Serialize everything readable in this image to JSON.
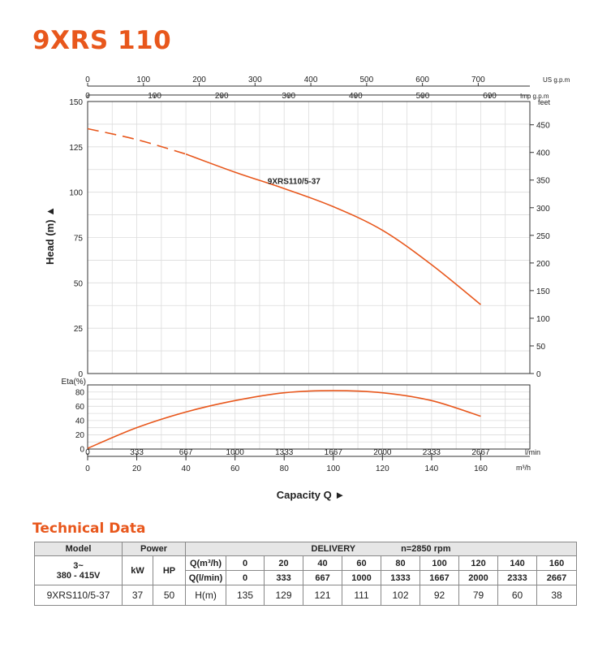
{
  "page_title": "9XRS 110",
  "section_title": "Technical Data",
  "chart_data": [
    {
      "type": "line",
      "name": "head-curve",
      "ylabel": "Head (m)",
      "ylabel_arrow": "▲",
      "ylim": [
        0,
        150
      ],
      "y_ticks": [
        0,
        25,
        50,
        75,
        100,
        125,
        150
      ],
      "xlim": [
        0,
        180
      ],
      "right_axis_unit": "feet",
      "right_axis_ticks": [
        0,
        50,
        100,
        150,
        200,
        250,
        300,
        350,
        400,
        450
      ],
      "top_axis_us": {
        "unit": "US g.p.m",
        "ticks": [
          0,
          100,
          200,
          300,
          400,
          500,
          600,
          700
        ]
      },
      "top_axis_imp": {
        "unit": "Imp g.p.m",
        "ticks": [
          0,
          100,
          200,
          300,
          400,
          500,
          600
        ]
      },
      "grid": true,
      "series": [
        {
          "name": "9XRS110/5-37",
          "color": "#e8571c",
          "x": [
            0,
            20,
            40,
            60,
            80,
            100,
            120,
            140,
            160
          ],
          "y": [
            135,
            129,
            121,
            111,
            102,
            92,
            79,
            60,
            38
          ],
          "dashed_until_x": 40
        }
      ]
    },
    {
      "type": "line",
      "name": "efficiency-curve",
      "ylabel": "Eta(%)",
      "ylim": [
        0,
        90
      ],
      "y_ticks": [
        0,
        20,
        40,
        60,
        80
      ],
      "xlim": [
        0,
        180
      ],
      "grid": true,
      "series": [
        {
          "color": "#e8571c",
          "x": [
            0,
            20,
            40,
            60,
            80,
            100,
            120,
            140,
            160
          ],
          "y": [
            1,
            30,
            52,
            68,
            79,
            82,
            79,
            68,
            46
          ]
        }
      ],
      "x_ticks_lmin": {
        "unit": "l/min",
        "ticks": [
          "0",
          "333",
          "667",
          "1000",
          "1333",
          "1667",
          "2000",
          "2333",
          "2667"
        ]
      },
      "x_ticks_m3h": {
        "unit": "m³/h",
        "ticks": [
          "0",
          "20",
          "40",
          "60",
          "80",
          "100",
          "120",
          "140",
          "160"
        ]
      },
      "xlabel": "Capacity Q",
      "xlabel_arrow": "►"
    }
  ],
  "table": {
    "model_header": "Model",
    "power_header": "Power",
    "delivery_header": "DELIVERY",
    "rpm": "n=2850 rpm",
    "voltage_line1": "3~",
    "voltage_line2": "380 - 415V",
    "kw_label": "kW",
    "hp_label": "HP",
    "q_m3h_label": "Q(m³/h)",
    "q_lmin_label": "Q(l/min)",
    "q_m3h": [
      "0",
      "20",
      "40",
      "60",
      "80",
      "100",
      "120",
      "140",
      "160"
    ],
    "q_lmin": [
      "0",
      "333",
      "667",
      "1000",
      "1333",
      "1667",
      "2000",
      "2333",
      "2667"
    ],
    "rows": [
      {
        "model": "9XRS110/5-37",
        "kw": "37",
        "hp": "50",
        "h_label": "H(m)",
        "h": [
          "135",
          "129",
          "121",
          "111",
          "102",
          "92",
          "79",
          "60",
          "38"
        ]
      }
    ]
  }
}
